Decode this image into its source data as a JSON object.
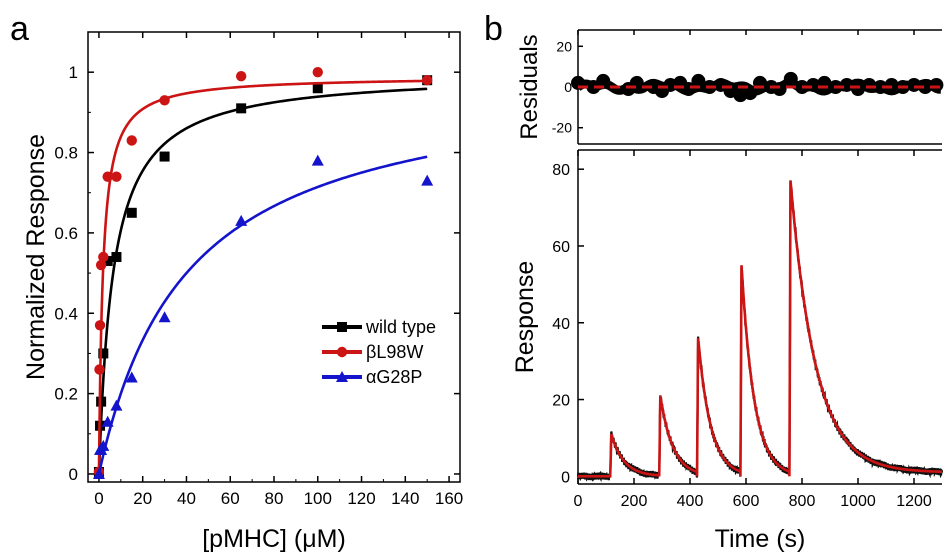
{
  "panel_labels": {
    "a": "a",
    "b": "b"
  },
  "chart_data": [
    {
      "id": "a",
      "type": "scatter",
      "xlabel": "[pMHC] (μM)",
      "ylabel": "Normalized Response",
      "xlim": [
        -5,
        165
      ],
      "ylim": [
        -0.02,
        1.1
      ],
      "xticks": [
        0,
        20,
        40,
        60,
        80,
        100,
        120,
        140,
        160
      ],
      "yticks": [
        0,
        0.2,
        0.4,
        0.6,
        0.8,
        1
      ],
      "ytick_labels": [
        "0",
        "0.2",
        "0.4",
        "0.6",
        "0.8",
        "1"
      ],
      "legend_position": "lower-right",
      "series": [
        {
          "name": "wild type",
          "color": "#000000",
          "marker": "square",
          "x": [
            0,
            0.5,
            1,
            2,
            4,
            8,
            15,
            30,
            65,
            100,
            150
          ],
          "y": [
            0.005,
            0.12,
            0.18,
            0.3,
            0.53,
            0.54,
            0.65,
            0.79,
            0.91,
            0.96,
            0.98
          ],
          "fit": {
            "model": "hyperbolic",
            "ymax": 1.0,
            "kd": 6.5
          }
        },
        {
          "name": "βL98W",
          "color": "#cc1414",
          "marker": "circle",
          "x": [
            0,
            0.25,
            0.5,
            1,
            2,
            4,
            8,
            15,
            30,
            65,
            100,
            150
          ],
          "y": [
            0.005,
            0.26,
            0.37,
            0.52,
            0.54,
            0.74,
            0.74,
            0.83,
            0.93,
            0.99,
            1.0,
            0.98
          ],
          "fit": {
            "model": "hyperbolic",
            "ymax": 0.99,
            "kd": 1.8
          }
        },
        {
          "name": "αG28P",
          "color": "#1414cc",
          "marker": "triangle",
          "x": [
            0,
            0.5,
            1,
            2,
            4,
            8,
            15,
            30,
            65,
            100,
            150
          ],
          "y": [
            0.0,
            0.06,
            0.06,
            0.07,
            0.13,
            0.17,
            0.24,
            0.39,
            0.63,
            0.78,
            0.73
          ],
          "fit": {
            "model": "hyperbolic",
            "ymax": 1.0,
            "kd": 40
          }
        }
      ]
    },
    {
      "id": "b-residuals",
      "type": "scatter",
      "ylabel": "Residuals",
      "xlim": [
        0,
        1300
      ],
      "ylim": [
        -28,
        28
      ],
      "yticks": [
        -20,
        0,
        20
      ],
      "ytick_labels": [
        "-20",
        "0",
        "20"
      ],
      "residual_points": [
        [
          0,
          2
        ],
        [
          55,
          0
        ],
        [
          90,
          3
        ],
        [
          180,
          -1
        ],
        [
          210,
          2
        ],
        [
          270,
          0
        ],
        [
          300,
          -2
        ],
        [
          330,
          1
        ],
        [
          365,
          2
        ],
        [
          395,
          -1
        ],
        [
          430,
          3
        ],
        [
          470,
          0
        ],
        [
          510,
          1
        ],
        [
          545,
          -2
        ],
        [
          580,
          -4
        ],
        [
          615,
          -3
        ],
        [
          650,
          2
        ],
        [
          690,
          0
        ],
        [
          720,
          -1
        ],
        [
          760,
          4
        ],
        [
          800,
          0
        ],
        [
          840,
          1
        ],
        [
          880,
          2
        ],
        [
          920,
          0
        ],
        [
          960,
          1
        ],
        [
          1000,
          -1
        ],
        [
          1040,
          1
        ],
        [
          1080,
          0
        ],
        [
          1120,
          1
        ],
        [
          1160,
          0
        ],
        [
          1200,
          1
        ],
        [
          1240,
          0
        ],
        [
          1280,
          1
        ]
      ],
      "zero_line": {
        "color": "#cc1414",
        "style": "dashed",
        "y": 0
      }
    },
    {
      "id": "b-response",
      "type": "line",
      "xlabel": "Time (s)",
      "ylabel": "Response",
      "xlim": [
        0,
        1300
      ],
      "ylim": [
        -2,
        85
      ],
      "xticks": [
        0,
        200,
        400,
        600,
        800,
        1000,
        1200
      ],
      "yticks": [
        0,
        20,
        40,
        60,
        80
      ],
      "injections": [
        {
          "start": 115,
          "peak": 11
        },
        {
          "start": 290,
          "peak": 21
        },
        {
          "start": 425,
          "peak": 36
        },
        {
          "start": 580,
          "peak": 55
        },
        {
          "start": 755,
          "peak": 77
        }
      ],
      "series": [
        {
          "name": "",
          "color": "#111111",
          "role": "data"
        },
        {
          "name": "",
          "color": "#cc1414",
          "role": "fit"
        }
      ]
    }
  ]
}
